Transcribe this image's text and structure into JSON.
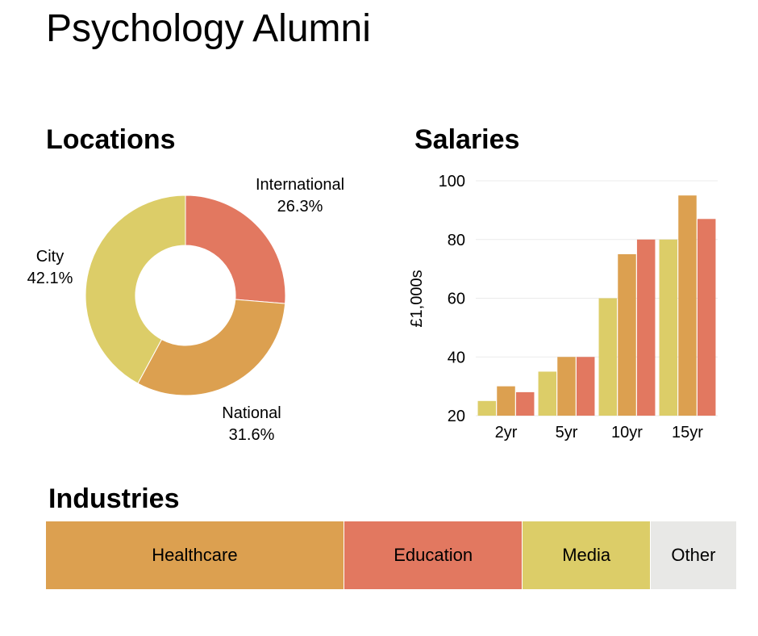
{
  "page": {
    "title": "Psychology Alumni"
  },
  "sections": {
    "locations": "Locations",
    "salaries": "Salaries",
    "industries": "Industries"
  },
  "colors": {
    "yellow": "#dccd68",
    "orange": "#dca050",
    "red": "#e27860",
    "grey": "#e8e8e6"
  },
  "chart_data": [
    {
      "type": "pie",
      "title": "Locations",
      "donut": true,
      "slices": [
        {
          "label": "International",
          "value": 26.3,
          "display": "26.3%",
          "color": "#e27860"
        },
        {
          "label": "National",
          "value": 31.6,
          "display": "31.6%",
          "color": "#dca050"
        },
        {
          "label": "City",
          "value": 42.1,
          "display": "42.1%",
          "color": "#dccd68"
        }
      ]
    },
    {
      "type": "bar",
      "title": "Salaries",
      "xlabel": "",
      "ylabel": "£1,000s",
      "categories": [
        "2yr",
        "5yr",
        "10yr",
        "15yr"
      ],
      "series": [
        {
          "values": [
            25,
            35,
            60,
            80
          ],
          "color": "#dccd68"
        },
        {
          "values": [
            30,
            40,
            75,
            95
          ],
          "color": "#dca050"
        },
        {
          "values": [
            28,
            40,
            80,
            87
          ],
          "color": "#e27860"
        }
      ],
      "ylim": [
        20,
        100
      ],
      "yticks": [
        20,
        40,
        60,
        80,
        100
      ],
      "grid": true,
      "legend": false
    },
    {
      "type": "bar",
      "orientation": "horizontal-stacked",
      "title": "Industries",
      "segments": [
        {
          "label": "Healthcare",
          "share": 0.432,
          "color": "#dca050"
        },
        {
          "label": "Education",
          "share": 0.259,
          "color": "#e27860"
        },
        {
          "label": "Media",
          "share": 0.185,
          "color": "#dccd68"
        },
        {
          "label": "Other",
          "share": 0.124,
          "color": "#e8e8e6"
        }
      ]
    }
  ]
}
